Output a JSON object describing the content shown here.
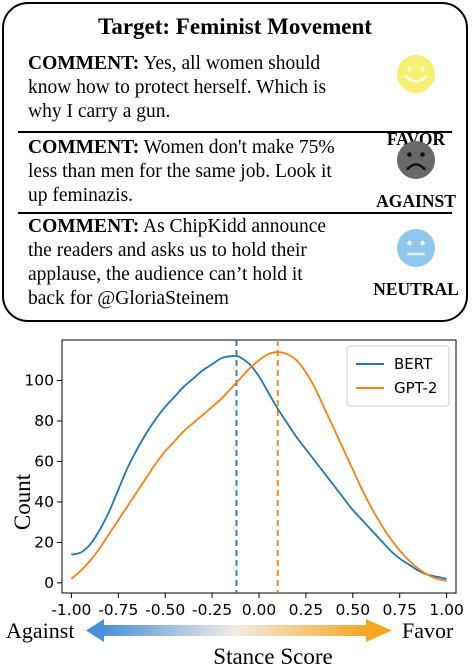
{
  "card": {
    "title": "Target: Feminist Movement",
    "comments": [
      {
        "prefix": "COMMENT:",
        "lines": [
          "Yes, all women should",
          "know how to protect herself. Which is",
          "why I carry a gun."
        ],
        "stance": "FAVOR",
        "emoji": "smiling-face-icon",
        "color": "#f7ef72"
      },
      {
        "prefix": "COMMENT:",
        "lines": [
          "Women don't make 75%",
          "less than men for the same job. Look it",
          "up feminazis."
        ],
        "stance": "AGAINST",
        "emoji": "frowning-face-icon",
        "color": "#686868"
      },
      {
        "prefix": "COMMENT:",
        "lines": [
          "As ChipKidd announce",
          "the readers and asks us to hold their",
          "applause, the audience can’t hold it",
          "back for @GloriaSteinem"
        ],
        "stance": "NEUTRAL",
        "emoji": "neutral-face-icon",
        "color": "#8ec8ee"
      }
    ]
  },
  "chart_data": {
    "type": "line",
    "xlabel": "Stance Score",
    "ylabel": "Count",
    "xlim": [
      -1.05,
      1.05
    ],
    "ylim": [
      -5,
      120
    ],
    "xticks": [
      "-1.00",
      "-0.75",
      "-0.50",
      "-0.25",
      "0.00",
      "0.25",
      "0.50",
      "0.75",
      "1.00"
    ],
    "yticks": [
      "0",
      "20",
      "40",
      "60",
      "80",
      "100"
    ],
    "legend_position": "top-right",
    "grid": false,
    "series": [
      {
        "name": "BERT",
        "color": "#1f77b4",
        "x": [
          -1.0,
          -0.95,
          -0.9,
          -0.85,
          -0.8,
          -0.75,
          -0.7,
          -0.65,
          -0.6,
          -0.55,
          -0.5,
          -0.45,
          -0.4,
          -0.35,
          -0.3,
          -0.25,
          -0.2,
          -0.15,
          -0.12,
          -0.1,
          -0.05,
          0.0,
          0.05,
          0.1,
          0.15,
          0.2,
          0.25,
          0.3,
          0.35,
          0.4,
          0.45,
          0.5,
          0.55,
          0.6,
          0.65,
          0.7,
          0.75,
          0.8,
          0.85,
          0.9,
          0.95,
          1.0
        ],
        "y": [
          14,
          15,
          19,
          26,
          35,
          46,
          57,
          66,
          74,
          81,
          87,
          92,
          97,
          101,
          105,
          108,
          111,
          112,
          112,
          111.5,
          108,
          102,
          94,
          86,
          79,
          72,
          66,
          60,
          54,
          48,
          42,
          36,
          31,
          26,
          21,
          16,
          12,
          9,
          6,
          4,
          3,
          2
        ]
      },
      {
        "name": "GPT-2",
        "color": "#ff7f0e",
        "x": [
          -1.0,
          -0.95,
          -0.9,
          -0.85,
          -0.8,
          -0.75,
          -0.7,
          -0.65,
          -0.6,
          -0.55,
          -0.5,
          -0.45,
          -0.4,
          -0.35,
          -0.3,
          -0.25,
          -0.2,
          -0.15,
          -0.1,
          -0.05,
          0.0,
          0.05,
          0.1,
          0.15,
          0.2,
          0.25,
          0.3,
          0.35,
          0.4,
          0.45,
          0.5,
          0.55,
          0.6,
          0.65,
          0.7,
          0.75,
          0.8,
          0.85,
          0.9,
          0.95,
          1.0
        ],
        "y": [
          2,
          6,
          11,
          17,
          24,
          31,
          38,
          45,
          52,
          59,
          65,
          70,
          75,
          79,
          83,
          87,
          91,
          96,
          101,
          106,
          110,
          113,
          114,
          113,
          110,
          104,
          96,
          86,
          76,
          66,
          56,
          46,
          37,
          29,
          22,
          16,
          11,
          7,
          4,
          2,
          1
        ]
      }
    ],
    "vlines": [
      {
        "series": "BERT",
        "x": -0.12,
        "style": "dashed",
        "color": "#1f77b4"
      },
      {
        "series": "GPT-2",
        "x": 0.1,
        "style": "dashed",
        "color": "#ff7f0e"
      }
    ],
    "colorbar": {
      "left_label": "Against",
      "right_label": "Favor",
      "left_color": "#4a90d9",
      "right_color": "#f5a623"
    }
  }
}
